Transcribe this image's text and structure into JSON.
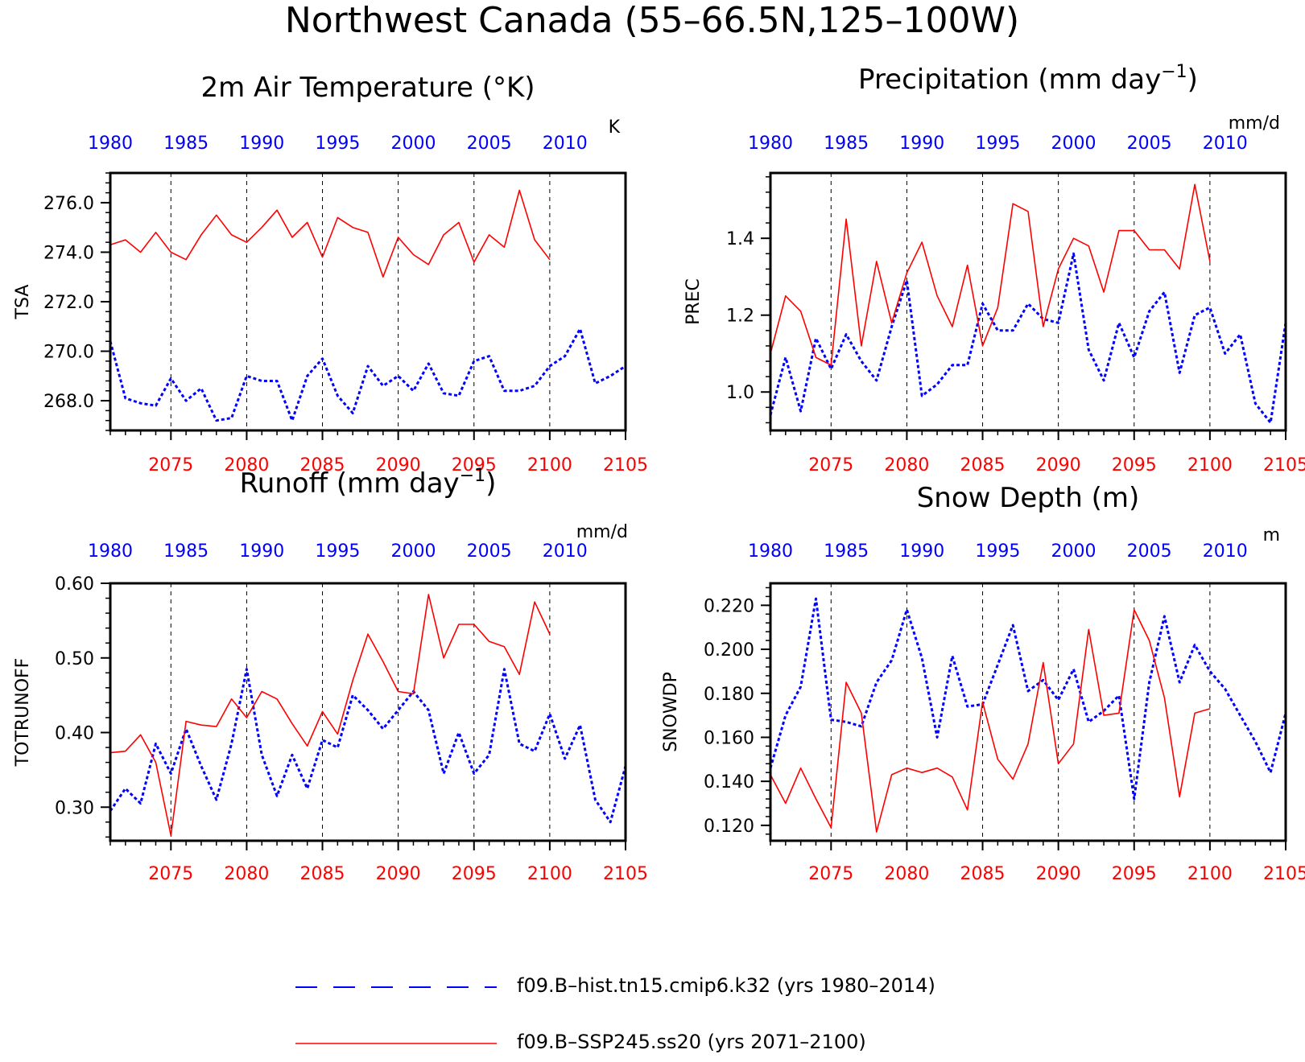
{
  "figure": {
    "title": "Northwest Canada (55–66.5N,125–100W)",
    "colors": {
      "hist": "#0000ff",
      "ssp": "#ff0000",
      "axis": "#000000",
      "grid": "#000000"
    },
    "legend": [
      {
        "label": "f09.B–hist.tn15.cmip6.k32 (yrs 1980–2014)",
        "color": "#0000ff",
        "style": "dashed"
      },
      {
        "label": "f09.B–SSP245.ss20 (yrs 2071–2100)",
        "color": "#ff0000",
        "style": "solid"
      }
    ]
  },
  "chart_data": [
    {
      "type": "line",
      "title": "2m Air Temperature (°K)",
      "ylabel": "TSA",
      "units": "K",
      "ylim": [
        266.8,
        277.2
      ],
      "yticks": [
        268.0,
        270.0,
        272.0,
        274.0,
        276.0
      ],
      "yticklabels": [
        "268.0",
        "270.0",
        "272.0",
        "274.0",
        "276.0"
      ],
      "bottom_axis": {
        "range": [
          2071,
          2105
        ],
        "ticks": [
          2075,
          2080,
          2085,
          2090,
          2095,
          2100,
          2105
        ],
        "color": "#ff0000"
      },
      "top_axis": {
        "range": [
          1980,
          2014
        ],
        "ticks": [
          1980,
          1985,
          1990,
          1995,
          2000,
          2005,
          2010
        ],
        "color": "#0000ff"
      },
      "series": [
        {
          "style": "dashed",
          "color": "#0000ff",
          "axis": "top",
          "x_start": 1980,
          "values": [
            270.4,
            268.1,
            267.9,
            267.8,
            268.9,
            268.0,
            268.5,
            267.2,
            267.3,
            269.0,
            268.8,
            268.8,
            267.2,
            269.0,
            269.7,
            268.2,
            267.5,
            269.4,
            268.6,
            269.0,
            268.4,
            269.5,
            268.3,
            268.2,
            269.6,
            269.8,
            268.4,
            268.4,
            268.6,
            269.4,
            269.8,
            270.9,
            268.7,
            269.0,
            269.4
          ]
        },
        {
          "style": "solid",
          "color": "#ff0000",
          "axis": "bottom",
          "x_start": 2071,
          "values": [
            274.3,
            274.5,
            274.0,
            274.8,
            274.0,
            273.7,
            274.7,
            275.5,
            274.7,
            274.4,
            275.0,
            275.7,
            274.6,
            275.2,
            273.8,
            275.4,
            275.0,
            274.8,
            273.0,
            274.6,
            273.9,
            273.5,
            274.7,
            275.2,
            273.6,
            274.7,
            274.2,
            276.5,
            274.5,
            273.7
          ]
        }
      ]
    },
    {
      "type": "line",
      "title": "Precipitation (mm day",
      "title_sup": "−1",
      "title_end": ")",
      "ylabel": "PREC",
      "units": "mm/d",
      "ylim": [
        0.9,
        1.57
      ],
      "yticks": [
        1.0,
        1.2,
        1.4
      ],
      "yticklabels": [
        "1.0",
        "1.2",
        "1.4"
      ],
      "bottom_axis": {
        "range": [
          2071,
          2105
        ],
        "ticks": [
          2075,
          2080,
          2085,
          2090,
          2095,
          2100,
          2105
        ],
        "color": "#ff0000"
      },
      "top_axis": {
        "range": [
          1980,
          2014
        ],
        "ticks": [
          1980,
          1985,
          1990,
          1995,
          2000,
          2005,
          2010
        ],
        "color": "#0000ff"
      },
      "series": [
        {
          "style": "dashed",
          "color": "#0000ff",
          "axis": "top",
          "x_start": 1980,
          "values": [
            0.94,
            1.09,
            0.95,
            1.14,
            1.06,
            1.15,
            1.08,
            1.03,
            1.17,
            1.29,
            0.99,
            1.02,
            1.07,
            1.07,
            1.23,
            1.16,
            1.16,
            1.23,
            1.19,
            1.18,
            1.36,
            1.11,
            1.03,
            1.18,
            1.09,
            1.21,
            1.26,
            1.05,
            1.2,
            1.22,
            1.1,
            1.15,
            0.97,
            0.92,
            1.18
          ]
        },
        {
          "style": "solid",
          "color": "#ff0000",
          "axis": "bottom",
          "x_start": 2071,
          "values": [
            1.1,
            1.25,
            1.21,
            1.09,
            1.07,
            1.45,
            1.12,
            1.34,
            1.18,
            1.31,
            1.39,
            1.25,
            1.17,
            1.33,
            1.12,
            1.22,
            1.49,
            1.47,
            1.17,
            1.32,
            1.4,
            1.38,
            1.26,
            1.42,
            1.42,
            1.37,
            1.37,
            1.32,
            1.54,
            1.34
          ]
        }
      ]
    },
    {
      "type": "line",
      "title": "Runoff (mm day",
      "title_sup": "−1",
      "title_end": ")",
      "ylabel": "TOTRUNOFF",
      "units": "mm/d",
      "ylim": [
        0.255,
        0.6
      ],
      "yticks": [
        0.3,
        0.4,
        0.5,
        0.6
      ],
      "yticklabels": [
        "0.30",
        "0.40",
        "0.50",
        "0.60"
      ],
      "bottom_axis": {
        "range": [
          2071,
          2105
        ],
        "ticks": [
          2075,
          2080,
          2085,
          2090,
          2095,
          2100,
          2105
        ],
        "color": "#ff0000"
      },
      "top_axis": {
        "range": [
          1980,
          2014
        ],
        "ticks": [
          1980,
          1985,
          1990,
          1995,
          2000,
          2005,
          2010
        ],
        "color": "#0000ff"
      },
      "series": [
        {
          "style": "dashed",
          "color": "#0000ff",
          "axis": "top",
          "x_start": 1980,
          "values": [
            0.295,
            0.325,
            0.305,
            0.385,
            0.345,
            0.405,
            0.355,
            0.31,
            0.385,
            0.485,
            0.37,
            0.315,
            0.37,
            0.325,
            0.39,
            0.38,
            0.45,
            0.43,
            0.405,
            0.43,
            0.455,
            0.43,
            0.345,
            0.4,
            0.345,
            0.37,
            0.485,
            0.385,
            0.375,
            0.425,
            0.365,
            0.41,
            0.31,
            0.28,
            0.355
          ]
        },
        {
          "style": "solid",
          "color": "#ff0000",
          "axis": "bottom",
          "x_start": 2071,
          "values": [
            0.373,
            0.375,
            0.397,
            0.36,
            0.262,
            0.415,
            0.41,
            0.408,
            0.445,
            0.42,
            0.455,
            0.445,
            0.412,
            0.382,
            0.428,
            0.398,
            0.47,
            0.532,
            0.495,
            0.455,
            0.452,
            0.585,
            0.5,
            0.545,
            0.545,
            0.522,
            0.515,
            0.478,
            0.575,
            0.532
          ]
        }
      ]
    },
    {
      "type": "line",
      "title": "Snow Depth (m)",
      "ylabel": "SNOWDP",
      "units": "m",
      "ylim": [
        0.113,
        0.23
      ],
      "yticks": [
        0.12,
        0.14,
        0.16,
        0.18,
        0.2,
        0.22
      ],
      "yticklabels": [
        "0.120",
        "0.140",
        "0.160",
        "0.180",
        "0.200",
        "0.220"
      ],
      "bottom_axis": {
        "range": [
          2071,
          2105
        ],
        "ticks": [
          2075,
          2080,
          2085,
          2090,
          2095,
          2100,
          2105
        ],
        "color": "#ff0000"
      },
      "top_axis": {
        "range": [
          1980,
          2014
        ],
        "ticks": [
          1980,
          1985,
          1990,
          1995,
          2000,
          2005,
          2010
        ],
        "color": "#0000ff"
      },
      "series": [
        {
          "style": "dashed",
          "color": "#0000ff",
          "axis": "top",
          "x_start": 1980,
          "values": [
            0.146,
            0.17,
            0.183,
            0.223,
            0.168,
            0.167,
            0.165,
            0.185,
            0.195,
            0.218,
            0.196,
            0.16,
            0.197,
            0.174,
            0.175,
            0.193,
            0.211,
            0.181,
            0.186,
            0.177,
            0.191,
            0.167,
            0.172,
            0.179,
            0.132,
            0.185,
            0.215,
            0.185,
            0.202,
            0.19,
            0.182,
            0.17,
            0.158,
            0.144,
            0.171
          ]
        },
        {
          "style": "solid",
          "color": "#ff0000",
          "axis": "bottom",
          "x_start": 2071,
          "values": [
            0.143,
            0.13,
            0.146,
            0.132,
            0.119,
            0.185,
            0.171,
            0.117,
            0.143,
            0.146,
            0.144,
            0.146,
            0.142,
            0.127,
            0.176,
            0.15,
            0.141,
            0.157,
            0.194,
            0.148,
            0.157,
            0.209,
            0.17,
            0.171,
            0.218,
            0.204,
            0.178,
            0.133,
            0.171,
            0.173
          ]
        }
      ]
    }
  ]
}
